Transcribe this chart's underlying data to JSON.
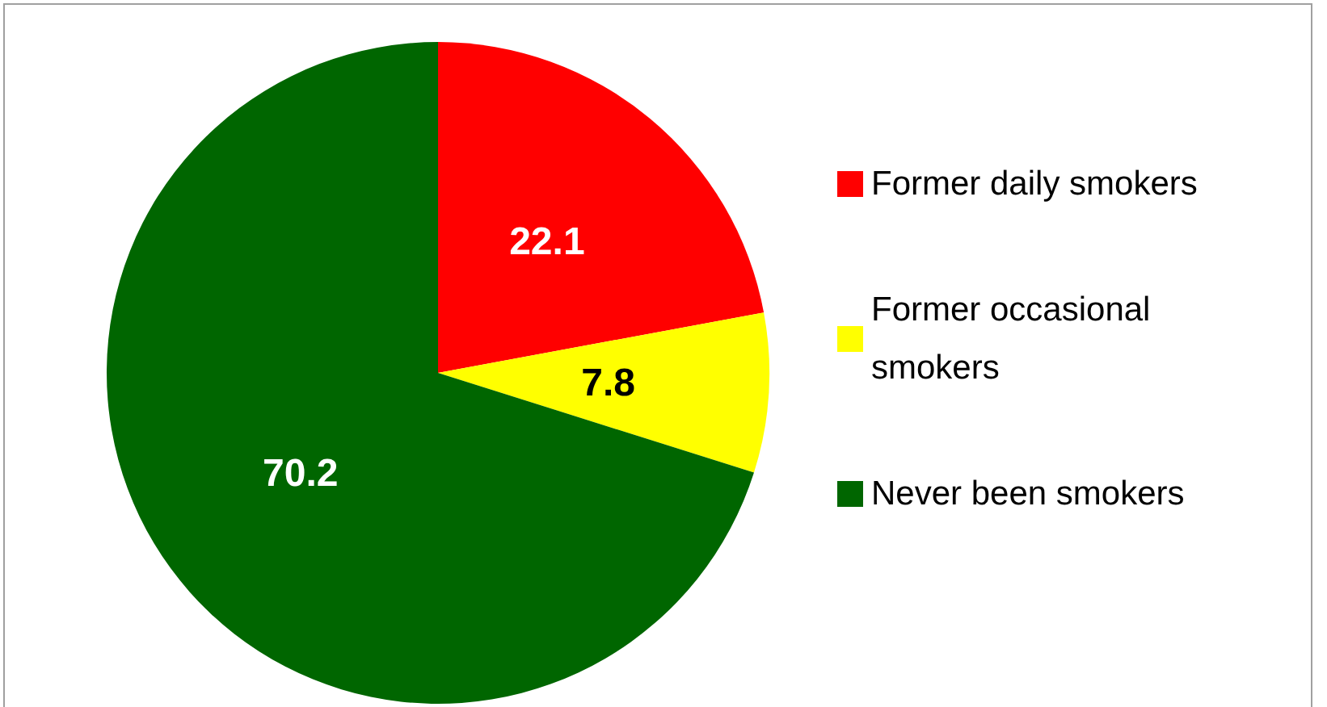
{
  "chart_data": {
    "type": "pie",
    "categories": [
      "Former daily smokers",
      "Former occasional smokers",
      "Never been smokers"
    ],
    "values": [
      22.1,
      7.8,
      70.2
    ],
    "colors": [
      "#ff0000",
      "#ffff00",
      "#006600"
    ],
    "data_labels": true,
    "legend": "right"
  }
}
